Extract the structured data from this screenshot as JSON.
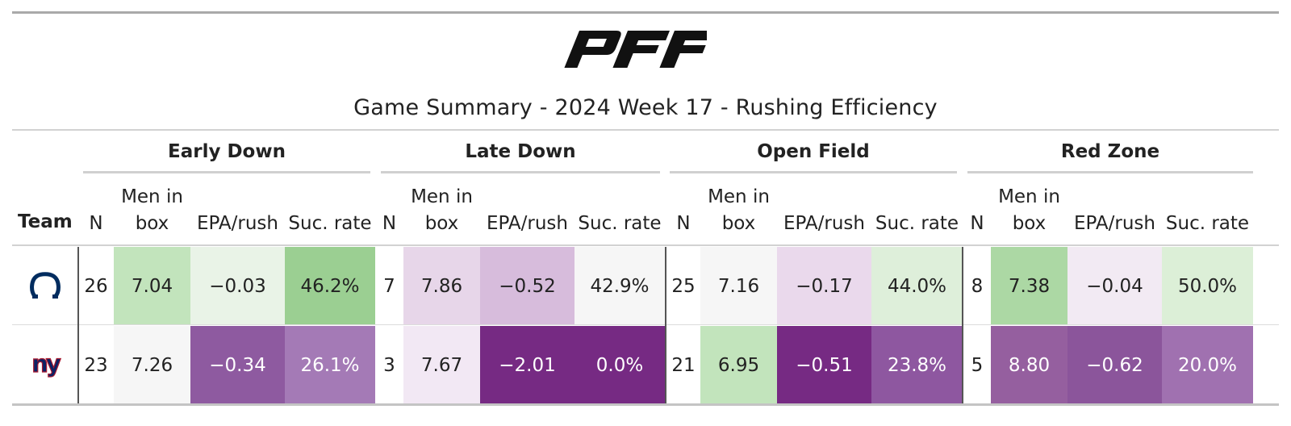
{
  "header": {
    "logo_text": "PFF",
    "title": "Game Summary - 2024 Week 17 - Rushing Efficiency"
  },
  "groups": [
    "Early Down",
    "Late Down",
    "Open Field",
    "Red Zone"
  ],
  "columns": {
    "team": "Team",
    "n": "N",
    "men_line1": "Men in",
    "men_line2": "box",
    "epa": "EPA/rush",
    "suc": "Suc. rate"
  },
  "rows": [
    {
      "team_icon": "colts-horseshoe-icon",
      "cells": [
        {
          "v": "26"
        },
        {
          "v": "7.04",
          "bg": "#c2e4bc"
        },
        {
          "v": "−0.03",
          "bg": "#e9f3e7"
        },
        {
          "v": "46.2%",
          "bg": "#9bcf92"
        },
        {
          "v": "7"
        },
        {
          "v": "7.86",
          "bg": "#e7d6e9"
        },
        {
          "v": "−0.52",
          "bg": "#d7bcdc"
        },
        {
          "v": "42.9%",
          "bg": "#f6f6f6"
        },
        {
          "v": "25"
        },
        {
          "v": "7.16",
          "bg": "#f6f6f6"
        },
        {
          "v": "−0.17",
          "bg": "#ead9ec"
        },
        {
          "v": "44.0%",
          "bg": "#deefda"
        },
        {
          "v": "8"
        },
        {
          "v": "7.38",
          "bg": "#acd8a4"
        },
        {
          "v": "−0.04",
          "bg": "#f2eaf3"
        },
        {
          "v": "50.0%",
          "bg": "#dcefd7"
        }
      ]
    },
    {
      "team_icon": "giants-ny-icon",
      "cells": [
        {
          "v": "23"
        },
        {
          "v": "7.26",
          "bg": "#f6f6f6"
        },
        {
          "v": "−0.34",
          "bg": "#8e5aa0",
          "dark": true
        },
        {
          "v": "26.1%",
          "bg": "#a47ab6",
          "dark": true
        },
        {
          "v": "3"
        },
        {
          "v": "7.67",
          "bg": "#f2e8f4"
        },
        {
          "v": "−2.01",
          "bg": "#762a83",
          "dark": true
        },
        {
          "v": "0.0%",
          "bg": "#762a83",
          "dark": true
        },
        {
          "v": "21"
        },
        {
          "v": "6.95",
          "bg": "#c2e4bc"
        },
        {
          "v": "−0.51",
          "bg": "#762a83",
          "dark": true
        },
        {
          "v": "23.8%",
          "bg": "#8e57a0",
          "dark": true
        },
        {
          "v": "5"
        },
        {
          "v": "8.80",
          "bg": "#955f9f",
          "dark": true
        },
        {
          "v": "−0.62",
          "bg": "#8b559b",
          "dark": true
        },
        {
          "v": "20.0%",
          "bg": "#a071b0",
          "dark": true
        }
      ]
    }
  ],
  "colors": {
    "colts_blue": "#002c5f",
    "giants_blue": "#0b2265",
    "giants_red": "#a71930"
  }
}
